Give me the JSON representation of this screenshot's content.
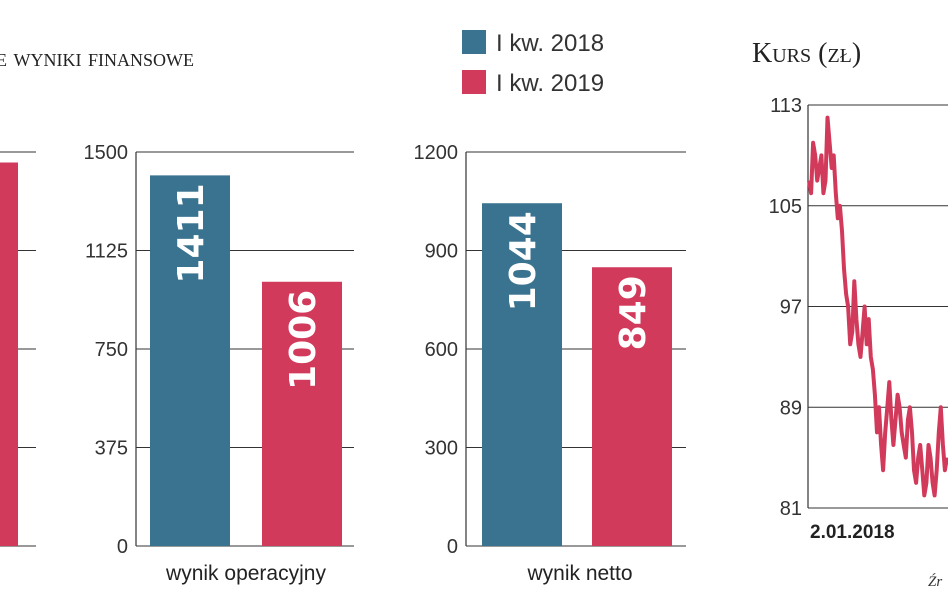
{
  "colors": {
    "series_2018": "#3a7390",
    "series_2019": "#d23a5b",
    "grid": "#333333"
  },
  "legend": [
    {
      "label": "I kw. 2018",
      "color": "#3a7390"
    },
    {
      "label": "I kw. 2019",
      "color": "#d23a5b"
    }
  ],
  "texts": {
    "left_title": "e wyniki finansowe",
    "right_title": "Kurs (zł)",
    "date_start": "2.01.2018",
    "source_fragment": "Źr"
  },
  "chart_data": [
    {
      "type": "bar",
      "title": "",
      "categories": [
        ""
      ],
      "series": [
        {
          "name": "I kw. 2019",
          "values": [
            1460
          ]
        }
      ],
      "ylim": [
        0,
        1500
      ],
      "note": "partially cropped at left edge"
    },
    {
      "type": "bar",
      "categories": [
        "wynik operacyjny"
      ],
      "yticks": [
        "0",
        "375",
        "750",
        "1125",
        "1500"
      ],
      "ylim": [
        0,
        1500
      ],
      "series": [
        {
          "name": "I kw. 2018",
          "values": [
            1411
          ],
          "labels": [
            "1411"
          ]
        },
        {
          "name": "I kw. 2019",
          "values": [
            1006
          ],
          "labels": [
            "1006"
          ]
        }
      ]
    },
    {
      "type": "bar",
      "categories": [
        "wynik netto"
      ],
      "yticks": [
        "0",
        "300",
        "600",
        "900",
        "1200"
      ],
      "ylim": [
        0,
        1200
      ],
      "series": [
        {
          "name": "I kw. 2018",
          "values": [
            1044
          ],
          "labels": [
            "1044"
          ]
        },
        {
          "name": "I kw. 2019",
          "values": [
            849
          ],
          "labels": [
            "849"
          ]
        }
      ]
    },
    {
      "type": "line",
      "title": "Kurs (zł)",
      "yticks": [
        "81",
        "89",
        "97",
        "105",
        "113"
      ],
      "ylim": [
        81,
        113
      ],
      "x_start_label": "2.01.2018",
      "series": [
        {
          "name": "",
          "values": [
            107,
            106,
            110,
            109,
            107,
            108,
            109,
            106,
            107,
            112,
            110,
            108,
            109,
            106,
            104,
            105,
            103,
            100,
            98,
            97,
            94,
            95,
            99,
            96,
            94,
            93,
            95,
            97,
            94,
            96,
            93,
            92,
            90,
            87,
            89,
            86,
            84,
            87,
            89,
            91,
            88,
            86,
            88,
            90,
            89,
            87,
            86,
            85,
            88,
            89,
            87,
            84,
            83,
            85,
            86,
            84,
            82,
            83,
            86,
            85,
            83,
            82,
            84,
            87,
            89,
            86,
            84,
            85
          ]
        }
      ]
    }
  ]
}
